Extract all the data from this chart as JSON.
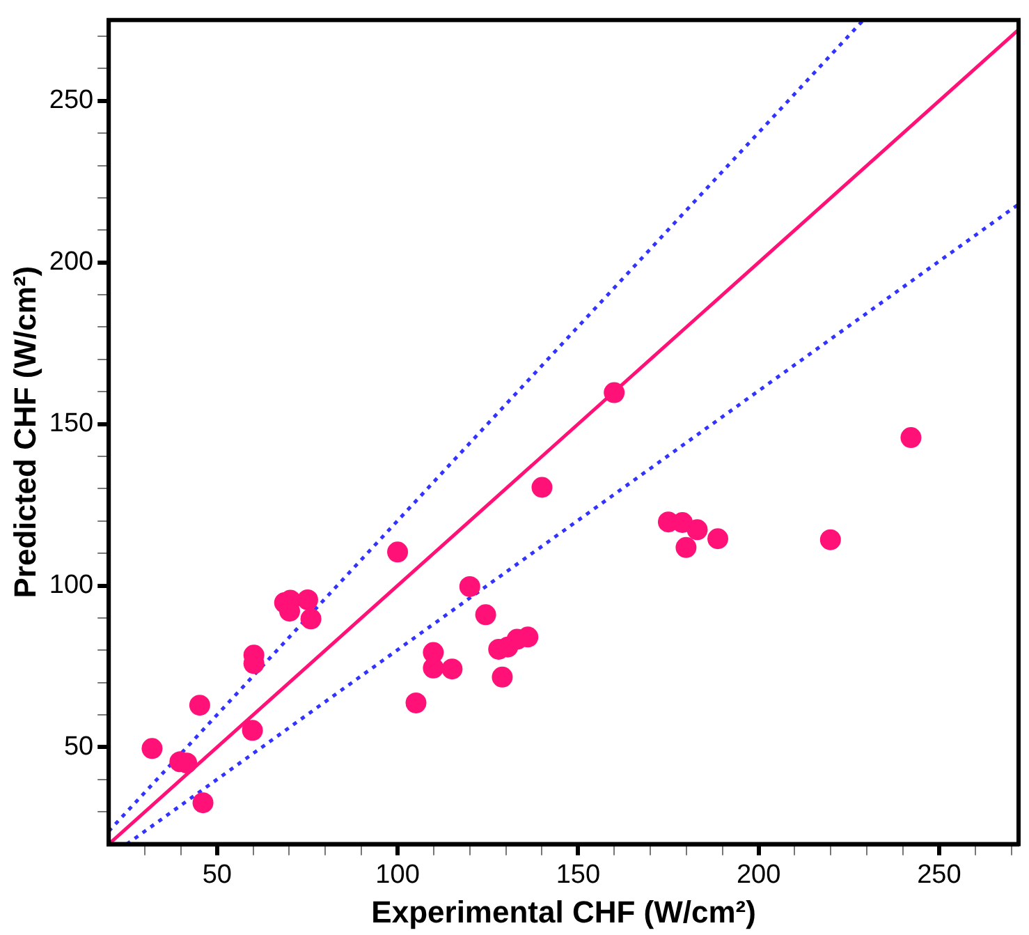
{
  "chart_data": {
    "type": "scatter",
    "xlabel": "Experimental CHF (W/cm²)",
    "ylabel": "Predicted CHF (W/cm²)",
    "xlim": [
      20,
      272
    ],
    "ylim": [
      20,
      275
    ],
    "xticks": [
      {
        "value": 30,
        "label": null
      },
      {
        "value": 40,
        "label": null
      },
      50,
      {
        "value": 60,
        "label": null
      },
      {
        "value": 70,
        "label": null
      },
      {
        "value": 80,
        "label": null
      },
      {
        "value": 90,
        "label": null
      },
      100,
      {
        "value": 110,
        "label": null
      },
      {
        "value": 120,
        "label": null
      },
      {
        "value": 130,
        "label": null
      },
      {
        "value": 140,
        "label": null
      },
      150,
      {
        "value": 160,
        "label": null
      },
      {
        "value": 170,
        "label": null
      },
      {
        "value": 180,
        "label": null
      },
      {
        "value": 190,
        "label": null
      },
      200,
      {
        "value": 210,
        "label": null
      },
      {
        "value": 220,
        "label": null
      },
      {
        "value": 230,
        "label": null
      },
      {
        "value": 240,
        "label": null
      },
      250,
      {
        "value": 260,
        "label": null
      },
      {
        "value": 270,
        "label": null
      }
    ],
    "yticks": [
      {
        "value": 30,
        "label": null
      },
      {
        "value": 40,
        "label": null
      },
      50,
      {
        "value": 60,
        "label": null
      },
      {
        "value": 70,
        "label": null
      },
      {
        "value": 80,
        "label": null
      },
      {
        "value": 90,
        "label": null
      },
      100,
      {
        "value": 110,
        "label": null
      },
      {
        "value": 120,
        "label": null
      },
      {
        "value": 130,
        "label": null
      },
      {
        "value": 140,
        "label": null
      },
      150,
      {
        "value": 160,
        "label": null
      },
      {
        "value": 170,
        "label": null
      },
      {
        "value": 180,
        "label": null
      },
      {
        "value": 190,
        "label": null
      },
      200,
      {
        "value": 210,
        "label": null
      },
      {
        "value": 220,
        "label": null
      },
      {
        "value": 230,
        "label": null
      },
      {
        "value": 240,
        "label": null
      },
      250,
      {
        "value": 260,
        "label": null
      },
      {
        "value": 270,
        "label": null
      }
    ],
    "grid": false,
    "legend": false,
    "series": [
      {
        "type": "line",
        "color": "#ff1177",
        "line_style": "solid",
        "marker": "none",
        "x": [
          20,
          272
        ],
        "values": [
          20,
          272
        ]
      },
      {
        "type": "line",
        "color": "#3333ff",
        "line_style": "dotted",
        "marker": "none",
        "x": [
          20,
          229
        ],
        "values": [
          24,
          275
        ]
      },
      {
        "type": "line",
        "color": "#3333ff",
        "line_style": "dotted",
        "marker": "none",
        "x": [
          25,
          272
        ],
        "values": [
          20,
          218
        ]
      },
      {
        "type": "scatter",
        "color": "#ff1177",
        "marker": "circle",
        "x": [
          32,
          39.7,
          41.6,
          45.2,
          46.1,
          59.8,
          60.2,
          60.2,
          68.7,
          70.3,
          70.1,
          75.1,
          76,
          100,
          105.1,
          109.9,
          109.9,
          115.1,
          120,
          124.4,
          129,
          128,
          130.5,
          133.1,
          136.1,
          140,
          160,
          175,
          178.9,
          183,
          179.9,
          188.7,
          219.9,
          242.2
        ],
        "values": [
          49.6,
          45.5,
          45.1,
          63,
          32.8,
          55.2,
          78.5,
          75.9,
          94.7,
          95.5,
          92.1,
          95.6,
          89.7,
          110.4,
          63.7,
          79.3,
          74.5,
          74.2,
          99.7,
          91,
          71.7,
          80.3,
          81,
          83.4,
          84.1,
          130.4,
          159.7,
          119.7,
          119.5,
          117.3,
          111.8,
          114.5,
          114.2,
          145.8
        ]
      }
    ]
  }
}
